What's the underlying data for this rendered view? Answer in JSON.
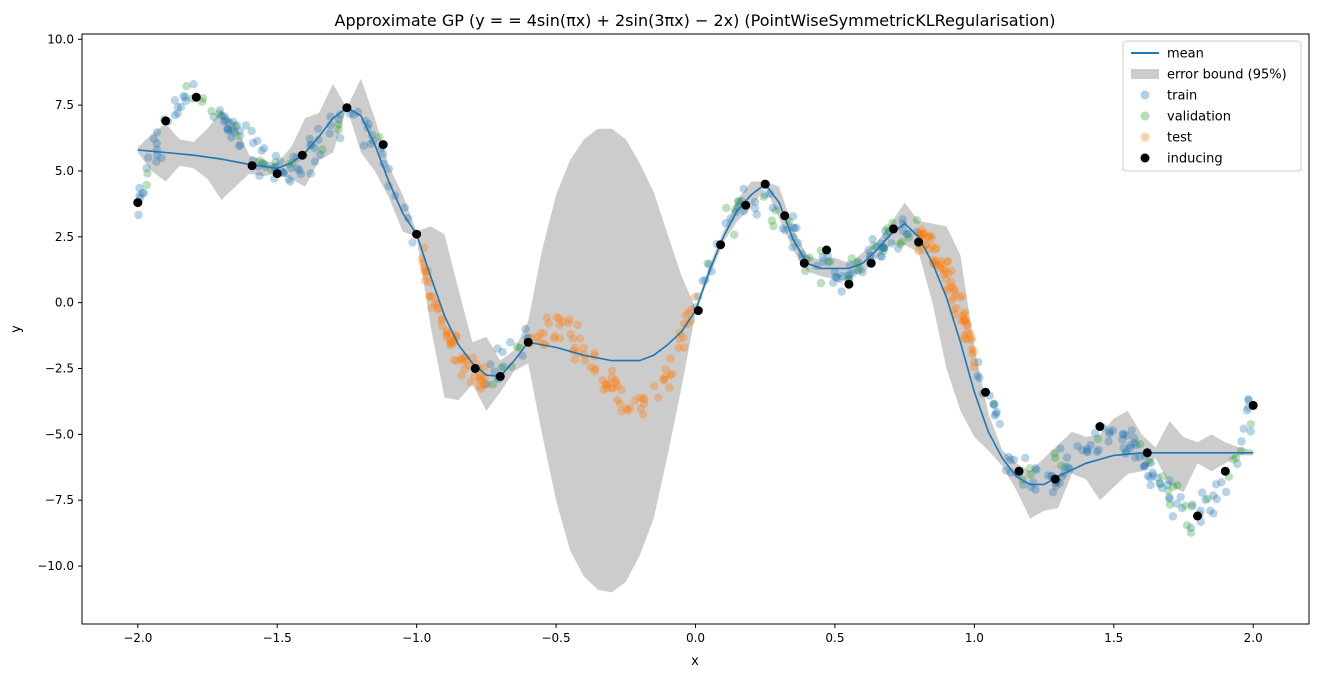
{
  "chart_data": {
    "type": "line",
    "title": "Approximate GP ($y = = 4\\sin(\\pi x) + 2\\sin(3\\pi x) -2x$) (PointWiseSymmetricKLRegularisation)",
    "title_rendered": "Approximate GP (y = = 4sin(πx) + 2sin(3πx) − 2x) (PointWiseSymmetricKLRegularisation)",
    "xlabel": "x",
    "ylabel": "y",
    "xlim": [
      -2.2,
      2.2
    ],
    "ylim": [
      -12.2,
      10.2
    ],
    "grid": false,
    "legend_position": "top-right",
    "x_ticks": [
      -2.0,
      -1.5,
      -1.0,
      -0.5,
      0.0,
      0.5,
      1.0,
      1.5,
      2.0
    ],
    "x_tick_labels": [
      "−2.0",
      "−1.5",
      "−1.0",
      "−0.5",
      "0.0",
      "0.5",
      "1.0",
      "1.5",
      "2.0"
    ],
    "y_ticks": [
      10.0,
      7.5,
      5.0,
      2.5,
      0.0,
      -2.5,
      -5.0,
      -7.5,
      -10.0
    ],
    "y_tick_labels": [
      "10.0",
      "7.5",
      "5.0",
      "2.5",
      "0.0",
      "−2.5",
      "−5.0",
      "−7.5",
      "−10.0"
    ],
    "colors": {
      "mean": "#1f77b4",
      "error_band": "#cccccc",
      "train": "#1f77b4",
      "validation": "#2ca02c",
      "test": "#ff7f0e",
      "inducing": "#000000"
    },
    "legend": [
      {
        "key": "mean",
        "label": "mean",
        "kind": "line"
      },
      {
        "key": "error_band",
        "label": "error bound (95%)",
        "kind": "band"
      },
      {
        "key": "train",
        "label": "train",
        "kind": "dot-faded"
      },
      {
        "key": "validation",
        "label": "validation",
        "kind": "dot-faded"
      },
      {
        "key": "test",
        "label": "test",
        "kind": "dot-faded"
      },
      {
        "key": "inducing",
        "label": "inducing",
        "kind": "dot"
      }
    ],
    "series": [
      {
        "name": "mean",
        "x": [
          -2.0,
          -1.9,
          -1.8,
          -1.7,
          -1.6,
          -1.5,
          -1.45,
          -1.4,
          -1.35,
          -1.3,
          -1.25,
          -1.2,
          -1.15,
          -1.1,
          -1.05,
          -1.0,
          -0.95,
          -0.9,
          -0.85,
          -0.8,
          -0.75,
          -0.7,
          -0.65,
          -0.6,
          -0.5,
          -0.4,
          -0.3,
          -0.2,
          -0.15,
          -0.1,
          -0.05,
          0.0,
          0.05,
          0.1,
          0.15,
          0.2,
          0.25,
          0.3,
          0.35,
          0.4,
          0.45,
          0.5,
          0.55,
          0.6,
          0.65,
          0.7,
          0.75,
          0.8,
          0.85,
          0.9,
          0.95,
          1.0,
          1.05,
          1.1,
          1.15,
          1.2,
          1.25,
          1.3,
          1.4,
          1.5,
          1.6,
          1.7,
          1.8,
          1.9,
          2.0
        ],
        "y": [
          5.8,
          5.7,
          5.6,
          5.45,
          5.25,
          5.1,
          5.3,
          5.7,
          6.3,
          7.0,
          7.4,
          7.1,
          6.0,
          4.6,
          3.4,
          2.6,
          1.0,
          -0.5,
          -1.6,
          -2.3,
          -2.75,
          -2.8,
          -2.2,
          -1.5,
          -1.7,
          -2.0,
          -2.2,
          -2.2,
          -2.0,
          -1.6,
          -1.1,
          -0.3,
          1.2,
          2.5,
          3.5,
          4.1,
          4.5,
          3.8,
          2.4,
          1.5,
          1.3,
          1.3,
          1.3,
          1.5,
          2.0,
          2.6,
          3.0,
          2.5,
          1.5,
          0.2,
          -1.5,
          -3.4,
          -4.9,
          -5.9,
          -6.6,
          -6.9,
          -6.9,
          -6.6,
          -6.1,
          -5.8,
          -5.7,
          -5.7,
          -5.7,
          -5.7,
          -5.7
        ]
      },
      {
        "name": "error bound (95%)",
        "x": [
          -2.0,
          -1.95,
          -1.9,
          -1.85,
          -1.8,
          -1.75,
          -1.7,
          -1.65,
          -1.6,
          -1.55,
          -1.5,
          -1.45,
          -1.4,
          -1.35,
          -1.3,
          -1.25,
          -1.2,
          -1.15,
          -1.1,
          -1.05,
          -1.0,
          -0.95,
          -0.9,
          -0.85,
          -0.8,
          -0.75,
          -0.7,
          -0.65,
          -0.6,
          -0.55,
          -0.5,
          -0.45,
          -0.4,
          -0.35,
          -0.3,
          -0.25,
          -0.2,
          -0.15,
          -0.1,
          -0.05,
          0.0,
          0.05,
          0.1,
          0.15,
          0.2,
          0.25,
          0.3,
          0.35,
          0.4,
          0.45,
          0.5,
          0.55,
          0.6,
          0.65,
          0.7,
          0.75,
          0.8,
          0.85,
          0.9,
          0.95,
          1.0,
          1.05,
          1.1,
          1.15,
          1.2,
          1.25,
          1.3,
          1.35,
          1.4,
          1.45,
          1.5,
          1.55,
          1.6,
          1.65,
          1.7,
          1.75,
          1.8,
          1.85,
          1.9,
          1.95,
          2.0
        ],
        "upper": [
          5.9,
          6.4,
          6.8,
          6.2,
          6.1,
          6.6,
          7.3,
          6.8,
          5.6,
          5.4,
          5.3,
          5.9,
          7.0,
          7.2,
          8.3,
          7.4,
          8.5,
          7.0,
          5.2,
          4.1,
          2.7,
          2.9,
          2.6,
          0.5,
          -1.5,
          -1.3,
          -2.2,
          -1.8,
          -0.7,
          2.0,
          4.1,
          5.4,
          6.2,
          6.6,
          6.6,
          6.2,
          5.3,
          4.2,
          2.6,
          1.0,
          -0.2,
          1.4,
          2.7,
          3.9,
          4.6,
          4.6,
          4.4,
          2.8,
          1.8,
          1.6,
          1.7,
          1.5,
          1.9,
          2.3,
          3.0,
          3.8,
          3.1,
          3.0,
          2.9,
          1.8,
          -1.7,
          -4.2,
          -5.6,
          -6.1,
          -6.4,
          -5.9,
          -5.4,
          -4.9,
          -5.1,
          -5.0,
          -4.4,
          -4.1,
          -5.0,
          -5.5,
          -4.5,
          -5.1,
          -5.3,
          -5.0,
          -5.3,
          -5.5,
          -5.6
        ],
        "lower": [
          5.7,
          5.0,
          4.6,
          5.2,
          5.1,
          4.7,
          3.9,
          4.4,
          4.9,
          4.8,
          4.9,
          4.7,
          4.4,
          5.4,
          5.7,
          7.4,
          5.7,
          5.0,
          4.0,
          2.7,
          2.5,
          -0.9,
          -3.6,
          -3.7,
          -3.1,
          -4.1,
          -3.4,
          -2.6,
          -2.3,
          -5.0,
          -7.5,
          -9.4,
          -10.4,
          -10.9,
          -11.0,
          -10.6,
          -9.6,
          -8.2,
          -5.8,
          -3.2,
          -0.4,
          1.0,
          2.3,
          3.1,
          3.6,
          4.4,
          3.2,
          2.0,
          1.2,
          1.0,
          0.9,
          1.1,
          1.1,
          1.7,
          2.2,
          2.2,
          1.9,
          0.0,
          -2.5,
          -4.1,
          -5.1,
          -5.6,
          -6.2,
          -7.1,
          -8.2,
          -7.9,
          -7.8,
          -6.5,
          -6.7,
          -7.5,
          -7.0,
          -6.5,
          -6.4,
          -5.9,
          -6.9,
          -7.2,
          -6.1,
          -6.4,
          -6.1,
          -5.8,
          -5.8
        ]
      },
      {
        "name": "inducing",
        "x": [
          -2.0,
          -1.9,
          -1.79,
          -1.59,
          -1.5,
          -1.41,
          -1.25,
          -1.12,
          -1.0,
          -0.79,
          -0.7,
          -0.6,
          0.01,
          0.09,
          0.18,
          0.25,
          0.32,
          0.39,
          0.47,
          0.55,
          0.63,
          0.71,
          0.8,
          1.04,
          1.16,
          1.29,
          1.45,
          1.62,
          1.8,
          1.9,
          2.0
        ],
        "y": [
          3.8,
          6.9,
          7.8,
          5.2,
          4.9,
          5.6,
          7.4,
          6.0,
          2.6,
          -2.5,
          -2.8,
          -1.5,
          -0.3,
          2.2,
          3.7,
          4.5,
          3.3,
          1.5,
          2.0,
          0.7,
          1.5,
          2.8,
          2.3,
          -3.4,
          -6.4,
          -6.7,
          -4.7,
          -5.7,
          -8.1,
          -6.4,
          -3.9
        ]
      }
    ],
    "scatter_summary": {
      "train": {
        "x_range": [
          -2.0,
          2.0
        ],
        "note_test_gap": [
          -0.95,
          0.0
        ]
      },
      "validation": {
        "x_range": [
          -2.0,
          2.0
        ]
      },
      "test": {
        "x_ranges": [
          [
            -1.0,
            -0.75
          ],
          [
            -0.6,
            0.0
          ],
          [
            0.8,
            1.0
          ]
        ]
      }
    }
  }
}
